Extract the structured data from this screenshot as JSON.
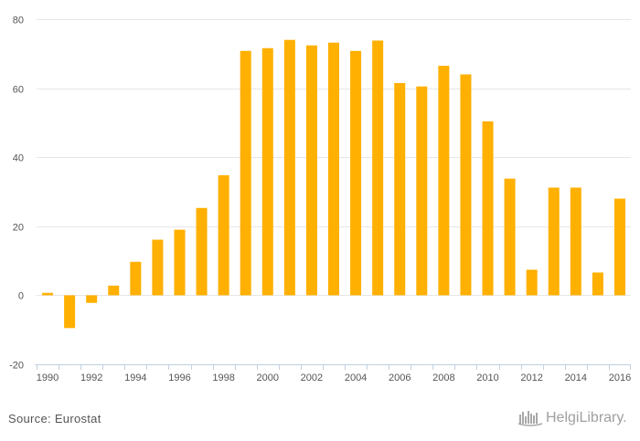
{
  "chart_data": {
    "type": "bar",
    "title": "",
    "xlabel": "",
    "ylabel": "",
    "color": "#FFB000",
    "ylim": [
      -20,
      80
    ],
    "yticks": [
      -20,
      0,
      20,
      40,
      60,
      80
    ],
    "categories": [
      "1990",
      "1991",
      "1992",
      "1993",
      "1994",
      "1995",
      "1996",
      "1997",
      "1998",
      "1999",
      "2000",
      "2001",
      "2002",
      "2003",
      "2004",
      "2005",
      "2006",
      "2007",
      "2008",
      "2009",
      "2010",
      "2011",
      "2012",
      "2013",
      "2014",
      "2015",
      "2016"
    ],
    "xtick_labels": [
      "1990",
      "1992",
      "1994",
      "1996",
      "1998",
      "2000",
      "2002",
      "2004",
      "2006",
      "2008",
      "2010",
      "2012",
      "2014",
      "2016"
    ],
    "values": [
      0.7,
      -9.5,
      -2.2,
      2.8,
      9.7,
      16.1,
      19.0,
      25.3,
      34.8,
      70.8,
      71.6,
      74.0,
      72.4,
      73.2,
      70.8,
      73.8,
      61.5,
      60.5,
      66.5,
      64.0,
      50.4,
      33.8,
      7.4,
      31.2,
      31.2,
      6.6,
      28.0
    ]
  },
  "footer": {
    "source": "Source: Eurostat",
    "logo_text": "HelgiLibrary.",
    "logo_icon": "helgi-library-icon"
  }
}
